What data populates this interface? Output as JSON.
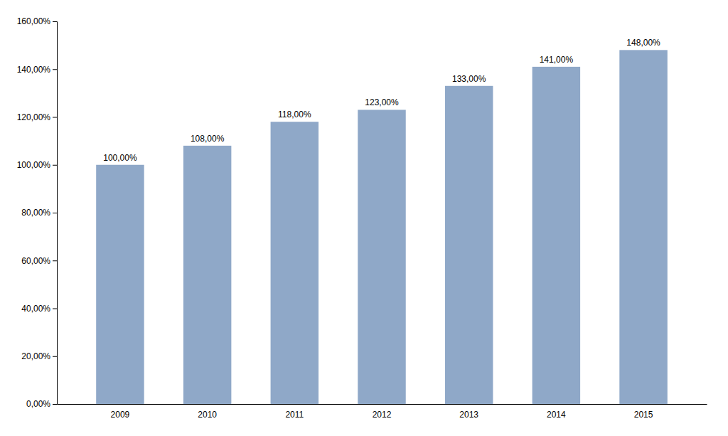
{
  "chart_data": {
    "type": "bar",
    "categories": [
      "2009",
      "2010",
      "2011",
      "2012",
      "2013",
      "2014",
      "2015"
    ],
    "values": [
      100.0,
      108.0,
      118.0,
      123.0,
      133.0,
      141.0,
      148.0
    ],
    "value_labels": [
      "100,00%",
      "108,00%",
      "118,00%",
      "123,00%",
      "133,00%",
      "141,00%",
      "148,00%"
    ],
    "color": "#8fa8c8",
    "ylim": [
      0,
      160
    ],
    "yticks": [
      {
        "value": 0,
        "label": "0,00%"
      },
      {
        "value": 20,
        "label": "20,00%"
      },
      {
        "value": 40,
        "label": "40,00%"
      },
      {
        "value": 60,
        "label": "60,00%"
      },
      {
        "value": 80,
        "label": "80,00%"
      },
      {
        "value": 100,
        "label": "100,00%"
      },
      {
        "value": 120,
        "label": "120,00%"
      },
      {
        "value": 140,
        "label": "140,00%"
      },
      {
        "value": 160,
        "label": "160,00%"
      }
    ],
    "grid": false,
    "data_labels": true
  }
}
